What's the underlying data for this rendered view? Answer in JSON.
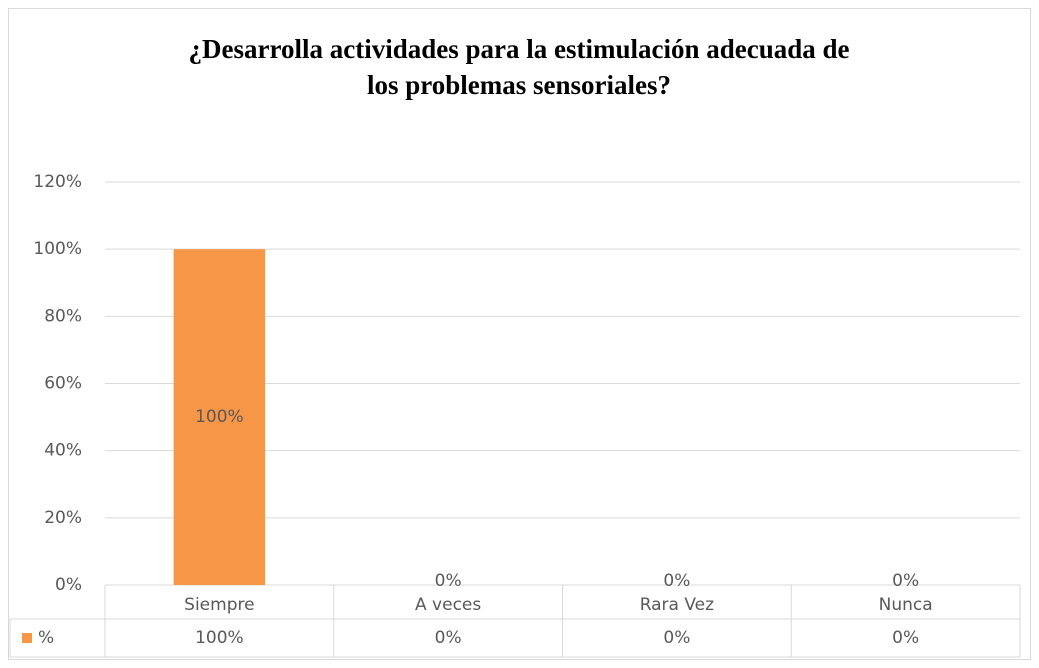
{
  "chart_data": {
    "type": "bar",
    "title": [
      "¿Desarrolla actividades para la estimulación adecuada de",
      "los problemas sensoriales?"
    ],
    "categories": [
      "Siempre",
      "A veces",
      "Rara Vez",
      "Nunca"
    ],
    "series": [
      {
        "name": "%",
        "color": "#f79646",
        "values": [
          100,
          0,
          0,
          0
        ],
        "value_labels": [
          "100%",
          "0%",
          "0%",
          "0%"
        ]
      }
    ],
    "ylim": [
      0,
      120
    ],
    "yticks": [
      {
        "value": 0,
        "label": "0%"
      },
      {
        "value": 20,
        "label": "20%"
      },
      {
        "value": 40,
        "label": "40%"
      },
      {
        "value": 60,
        "label": "60%"
      },
      {
        "value": 80,
        "label": "80%"
      },
      {
        "value": 100,
        "label": "100%"
      },
      {
        "value": 120,
        "label": "120%"
      }
    ],
    "grid": true
  }
}
